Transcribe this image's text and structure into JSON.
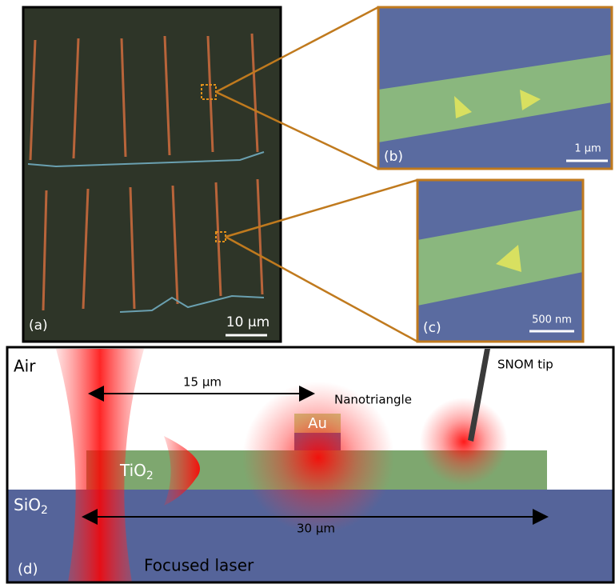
{
  "panel_a": {
    "label": "(a)",
    "scale_bar": "10 µm"
  },
  "panel_b": {
    "label": "(b)",
    "scale_bar": "1 µm"
  },
  "panel_c": {
    "label": "(c)",
    "scale_bar": "500 nm"
  },
  "panel_d": {
    "label": "(d)",
    "air": "Air",
    "distance_short": "15 µm",
    "nanotriangle": "Nanotriangle",
    "au": "Au",
    "tio2": {
      "base": "TiO",
      "sub": "2"
    },
    "sio2": {
      "base": "SiO",
      "sub": "2"
    },
    "distance_long": "30 µm",
    "snom_tip": "SNOM tip",
    "laser": "Focused laser"
  }
}
